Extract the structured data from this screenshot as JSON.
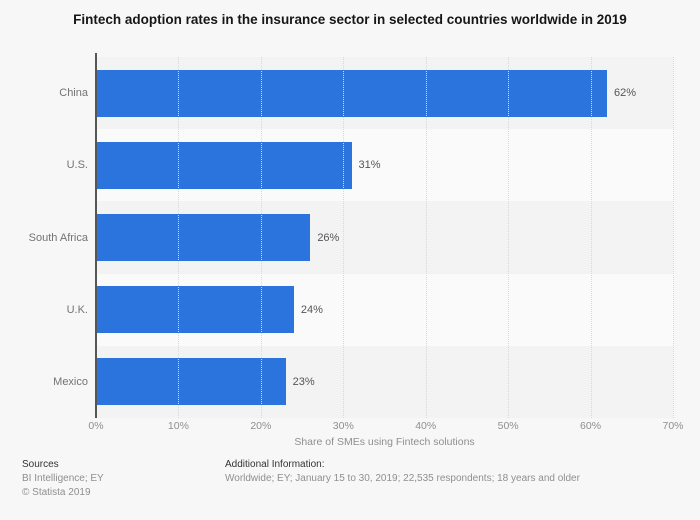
{
  "page": {
    "background_color": "#f7f7f7"
  },
  "chart_data": {
    "type": "bar",
    "orientation": "horizontal",
    "title": "Fintech adoption rates in the insurance sector in selected countries worldwide in 2019",
    "categories": [
      "China",
      "U.S.",
      "South Africa",
      "U.K.",
      "Mexico"
    ],
    "values": [
      62,
      31,
      26,
      24,
      23
    ],
    "value_labels": [
      "62%",
      "31%",
      "26%",
      "24%",
      "23%"
    ],
    "xlabel": "Share of SMEs using Fintech solutions",
    "x_ticks": [
      "0%",
      "10%",
      "20%",
      "30%",
      "40%",
      "50%",
      "60%",
      "70%"
    ],
    "xlim": [
      0,
      70
    ],
    "grid": true,
    "legend_position": "none",
    "bar_color": "#2b74dd",
    "axis_line_color": "#565656",
    "row_stripe_dark": "#f3f3f4",
    "row_stripe_light": "#fafafb"
  },
  "footer": {
    "sources_heading": "Sources",
    "sources_lines": [
      "BI Intelligence; EY",
      "© Statista 2019"
    ],
    "additional_heading": "Additional Information:",
    "additional_text": "Worldwide; EY; January 15 to 30, 2019; 22,535 respondents; 18 years and older"
  }
}
